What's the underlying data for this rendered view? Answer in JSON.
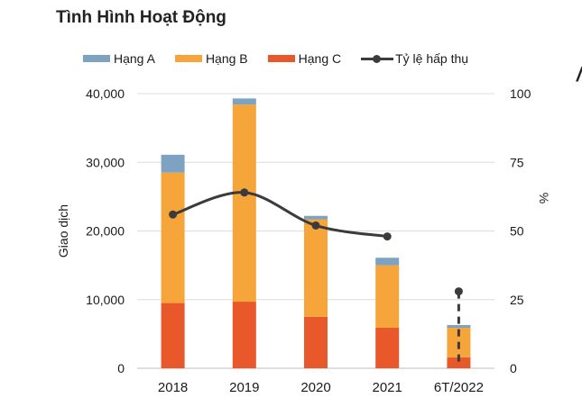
{
  "title": "Tình Hình Hoạt Động",
  "edge_text": "/",
  "legend": [
    {
      "label": "Hạng A",
      "kind": "bar",
      "color": "#7ea3c2"
    },
    {
      "label": "Hạng B",
      "kind": "bar",
      "color": "#f6a53a"
    },
    {
      "label": "Hạng C",
      "kind": "bar",
      "color": "#e8582a"
    },
    {
      "label": "Tỷ lệ hấp thụ",
      "kind": "line",
      "color": "#3b3b3b"
    }
  ],
  "chart_data": {
    "type": "bar",
    "stacked": true,
    "categories": [
      "2018",
      "2019",
      "2020",
      "2021",
      "6T/2022"
    ],
    "series": [
      {
        "name": "Hạng C",
        "color": "#e8582a",
        "values": [
          9500,
          9700,
          7500,
          5900,
          1600
        ]
      },
      {
        "name": "Hạng B",
        "color": "#f6a53a",
        "values": [
          19000,
          28700,
          14200,
          9100,
          4300
        ]
      },
      {
        "name": "Hạng A",
        "color": "#7ea3c2",
        "values": [
          2600,
          900,
          500,
          1100,
          400
        ]
      }
    ],
    "line_series": {
      "name": "Tỷ lệ hấp thụ",
      "axis": "right",
      "color": "#3b3b3b",
      "values": [
        56,
        64,
        52,
        48,
        28
      ],
      "dashed_from_index": 3
    },
    "ylabel_left": "Giao dịch",
    "ylabel_right": "%",
    "ylim_left": [
      0,
      40000
    ],
    "ylim_right": [
      0,
      100
    ],
    "yticks_left": [
      "0",
      "10,000",
      "20,000",
      "30,000",
      "40,000"
    ],
    "yticks_right": [
      "0",
      "25",
      "50",
      "75",
      "100"
    ],
    "grid": true,
    "legend_position": "top"
  }
}
